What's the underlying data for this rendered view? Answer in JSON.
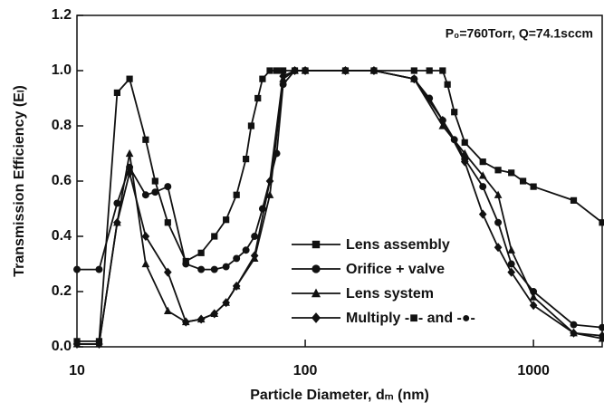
{
  "chart_data": {
    "type": "line",
    "annotation": "P₀=760Torr, Q=74.1sccm",
    "xlabel": "Particle Diameter, dₘ (nm)",
    "ylabel": "Transmission Efficiency (Eₗ)",
    "xscale": "log",
    "xlim": [
      10,
      2000
    ],
    "ylim": [
      0,
      1.2
    ],
    "xticks": [
      10,
      100,
      1000
    ],
    "yticks": [
      {
        "value": 0,
        "label": "0.0"
      },
      {
        "value": 0.2,
        "label": "0.2"
      },
      {
        "value": 0.4,
        "label": "0.4"
      },
      {
        "value": 0.6,
        "label": "0.6"
      },
      {
        "value": 0.8,
        "label": "0.8"
      },
      {
        "value": 1.0,
        "label": "1.0"
      },
      {
        "value": 1.2,
        "label": "1.2"
      }
    ],
    "series": [
      {
        "name": "Lens assembly",
        "color": "#111111",
        "marker": "square",
        "x": [
          10,
          12.5,
          15,
          17,
          20,
          22,
          25,
          30,
          35,
          40,
          45,
          50,
          55,
          58,
          62,
          65,
          70,
          75,
          80,
          90,
          100,
          150,
          200,
          300,
          350,
          400,
          420,
          450,
          500,
          600,
          700,
          800,
          900,
          1000,
          1500,
          2000
        ],
        "values": [
          0.02,
          0.02,
          0.92,
          0.97,
          0.75,
          0.6,
          0.45,
          0.31,
          0.34,
          0.4,
          0.46,
          0.55,
          0.68,
          0.8,
          0.9,
          0.97,
          1.0,
          1.0,
          1.0,
          1.0,
          1.0,
          1.0,
          1.0,
          1.0,
          1.0,
          1.0,
          0.95,
          0.85,
          0.74,
          0.67,
          0.64,
          0.63,
          0.6,
          0.58,
          0.53,
          0.45
        ]
      },
      {
        "name": "Orifice + valve",
        "color": "#111111",
        "marker": "circle",
        "x": [
          10,
          12.5,
          15,
          17,
          20,
          22,
          25,
          30,
          35,
          40,
          45,
          50,
          55,
          60,
          65,
          75,
          80,
          90,
          100,
          150,
          200,
          300,
          350,
          400,
          450,
          500,
          600,
          700,
          800,
          1000,
          1500,
          2000
        ],
        "values": [
          0.28,
          0.28,
          0.52,
          0.65,
          0.55,
          0.56,
          0.58,
          0.3,
          0.28,
          0.28,
          0.29,
          0.32,
          0.35,
          0.4,
          0.5,
          0.7,
          0.95,
          1.0,
          1.0,
          1.0,
          1.0,
          0.97,
          0.9,
          0.82,
          0.75,
          0.68,
          0.58,
          0.45,
          0.3,
          0.2,
          0.08,
          0.07
        ]
      },
      {
        "name": "Lens system",
        "color": "#111111",
        "marker": "triangle",
        "x": [
          10,
          12.5,
          15,
          17,
          20,
          25,
          30,
          35,
          40,
          45,
          50,
          60,
          70,
          80,
          90,
          100,
          150,
          200,
          300,
          400,
          500,
          600,
          700,
          800,
          1000,
          1500,
          2000
        ],
        "values": [
          0.01,
          0.01,
          0.45,
          0.7,
          0.3,
          0.13,
          0.09,
          0.1,
          0.12,
          0.16,
          0.22,
          0.32,
          0.55,
          0.97,
          1.0,
          1.0,
          1.0,
          1.0,
          0.97,
          0.8,
          0.7,
          0.62,
          0.55,
          0.35,
          0.18,
          0.05,
          0.03
        ]
      },
      {
        "name": "Multiply -■- and -●-",
        "color": "#111111",
        "marker": "diamond",
        "x": [
          10,
          12.5,
          15,
          17,
          20,
          25,
          30,
          35,
          40,
          45,
          50,
          60,
          70,
          80,
          90,
          100,
          150,
          200,
          300,
          400,
          500,
          600,
          700,
          800,
          1000,
          1500,
          2000
        ],
        "values": [
          0.01,
          0.01,
          0.45,
          0.63,
          0.4,
          0.27,
          0.09,
          0.1,
          0.12,
          0.16,
          0.22,
          0.33,
          0.6,
          0.98,
          1.0,
          1.0,
          1.0,
          1.0,
          0.97,
          0.82,
          0.67,
          0.48,
          0.36,
          0.27,
          0.15,
          0.05,
          0.04
        ]
      }
    ]
  }
}
